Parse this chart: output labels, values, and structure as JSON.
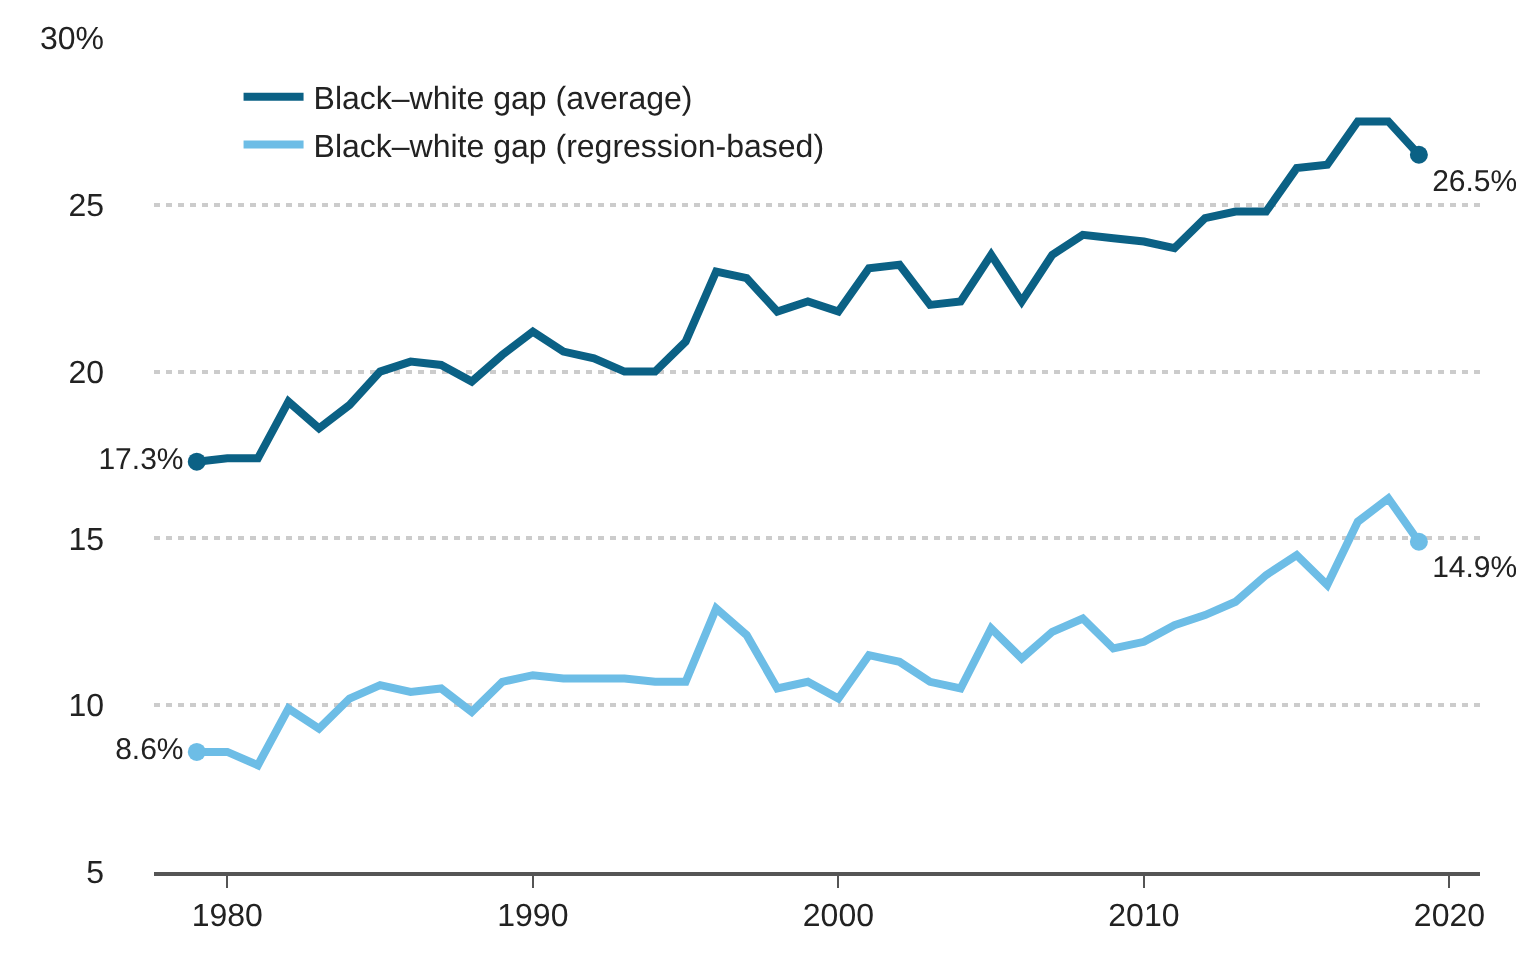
{
  "chart_data": {
    "type": "line",
    "x": [
      1979,
      1980,
      1981,
      1982,
      1983,
      1984,
      1985,
      1986,
      1987,
      1988,
      1989,
      1990,
      1991,
      1992,
      1993,
      1994,
      1995,
      1996,
      1997,
      1998,
      1999,
      2000,
      2001,
      2002,
      2003,
      2004,
      2005,
      2006,
      2007,
      2008,
      2009,
      2010,
      2011,
      2012,
      2013,
      2014,
      2015,
      2016,
      2017,
      2018,
      2019
    ],
    "series": [
      {
        "name": "Black–white gap (average)",
        "color": "#0b6185",
        "values": [
          17.3,
          17.4,
          17.4,
          19.1,
          18.3,
          19.0,
          20.0,
          20.3,
          20.2,
          19.7,
          20.5,
          21.2,
          20.6,
          20.4,
          20.0,
          20.0,
          20.9,
          23.0,
          22.8,
          21.8,
          22.1,
          21.8,
          23.1,
          23.2,
          22.0,
          22.1,
          23.5,
          22.1,
          23.5,
          24.1,
          24.0,
          23.9,
          23.7,
          24.6,
          24.8,
          24.8,
          26.1,
          26.2,
          27.5,
          27.5,
          26.5
        ],
        "value_labels": [
          "17.3%",
          null,
          null,
          null,
          null,
          null,
          null,
          null,
          null,
          null,
          null,
          null,
          null,
          null,
          null,
          null,
          null,
          null,
          null,
          null,
          null,
          null,
          null,
          null,
          null,
          null,
          null,
          null,
          null,
          null,
          null,
          null,
          null,
          null,
          null,
          null,
          null,
          null,
          null,
          null,
          "26.5%"
        ]
      },
      {
        "name": "Black–white gap (regression-based)",
        "color": "#6dbde6",
        "values": [
          8.6,
          8.6,
          8.2,
          9.9,
          9.3,
          10.2,
          10.6,
          10.4,
          10.5,
          9.8,
          10.7,
          10.9,
          10.8,
          10.8,
          10.8,
          10.7,
          10.7,
          12.9,
          12.1,
          10.5,
          10.7,
          10.2,
          11.5,
          11.3,
          10.7,
          10.5,
          12.3,
          11.4,
          12.2,
          12.6,
          11.7,
          11.9,
          12.4,
          12.7,
          13.1,
          13.9,
          14.5,
          13.6,
          15.5,
          16.2,
          14.9
        ],
        "value_labels": [
          "8.6%",
          null,
          null,
          null,
          null,
          null,
          null,
          null,
          null,
          null,
          null,
          null,
          null,
          null,
          null,
          null,
          null,
          null,
          null,
          null,
          null,
          null,
          null,
          null,
          null,
          null,
          null,
          null,
          null,
          null,
          null,
          null,
          null,
          null,
          null,
          null,
          null,
          null,
          null,
          null,
          "14.9%"
        ]
      }
    ],
    "xlim": [
      1977.6,
      2021
    ],
    "xticks": [
      1980,
      1990,
      2000,
      2010,
      2020
    ],
    "ylim": [
      5,
      30
    ],
    "yticks": [
      5,
      10,
      15,
      20,
      25,
      {
        "value": 30,
        "label": "30%"
      }
    ],
    "grid": "y",
    "legend": "top left",
    "line_style": "solid"
  }
}
